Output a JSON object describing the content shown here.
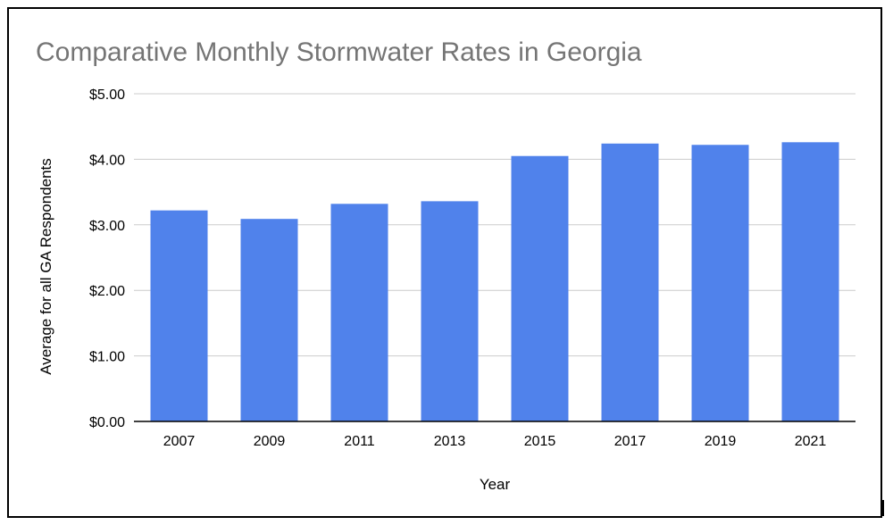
{
  "chart_data": {
    "type": "bar",
    "title": "Comparative Monthly Stormwater Rates in Georgia",
    "xlabel": "Year",
    "ylabel": "Average for all GA Respondents",
    "categories": [
      "2007",
      "2009",
      "2011",
      "2013",
      "2015",
      "2017",
      "2019",
      "2021"
    ],
    "values": [
      3.22,
      3.09,
      3.32,
      3.36,
      4.05,
      4.24,
      4.22,
      4.26
    ],
    "ylim": [
      0,
      5
    ],
    "yticks": [
      0,
      1,
      2,
      3,
      4,
      5
    ],
    "ytick_labels": [
      "$0.00",
      "$1.00",
      "$2.00",
      "$3.00",
      "$4.00",
      "$5.00"
    ],
    "grid": true,
    "legend": "none",
    "colors": {
      "bar": "#5082EB",
      "title": "#757575",
      "grid": "#CCCCCC",
      "axis": "#000000"
    }
  }
}
